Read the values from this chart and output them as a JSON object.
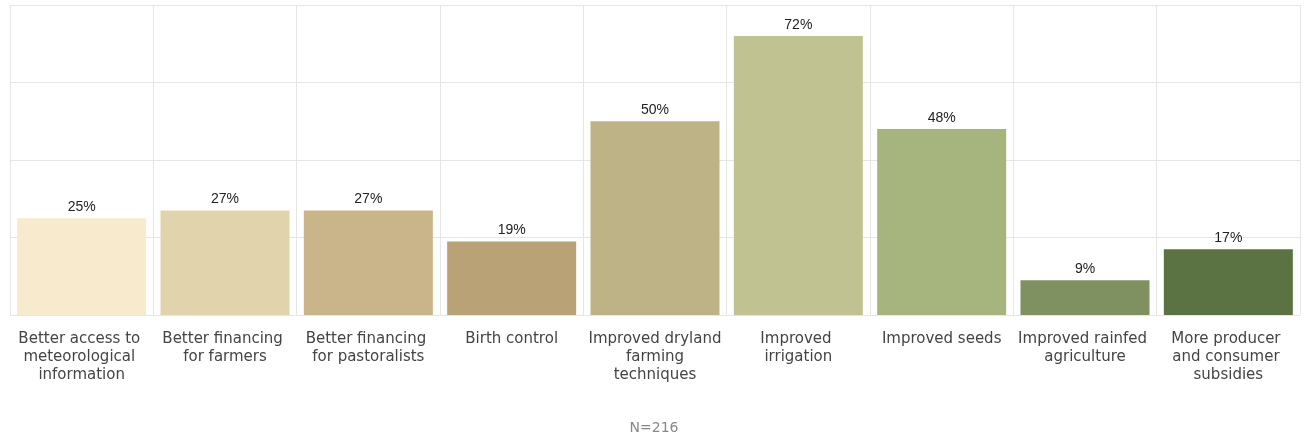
{
  "chart_data": {
    "type": "bar",
    "categories": [
      "Better access to meteorological information",
      "Better financing for farmers",
      "Better financing for pastoralists",
      "Birth control",
      "Improved dryland farming techniques",
      "Improved irrigation",
      "Improved seeds",
      "Improved rainfed agriculture",
      "More producer and consumer subsidies"
    ],
    "values": [
      25,
      27,
      27,
      19,
      50,
      72,
      48,
      9,
      17
    ],
    "colors": [
      "#f8ebcd",
      "#e1d3ab",
      "#cab48a",
      "#b9a276",
      "#bdb386",
      "#c0c391",
      "#a6b57e",
      "#7f9161",
      "#5b7343"
    ],
    "value_labels": [
      "25%",
      "27%",
      "27%",
      "19%",
      "50%",
      "72%",
      "48%",
      "9%",
      "17%"
    ],
    "ylim": [
      0,
      80
    ],
    "yticks": [
      {
        "value": 0,
        "label": null
      },
      {
        "value": 20,
        "label": null
      },
      {
        "value": 40,
        "label": null
      },
      {
        "value": 60,
        "label": null
      },
      {
        "value": 80,
        "label": null
      }
    ],
    "tick_labels": "x",
    "grid": true,
    "annotations": [
      "N=216"
    ]
  }
}
